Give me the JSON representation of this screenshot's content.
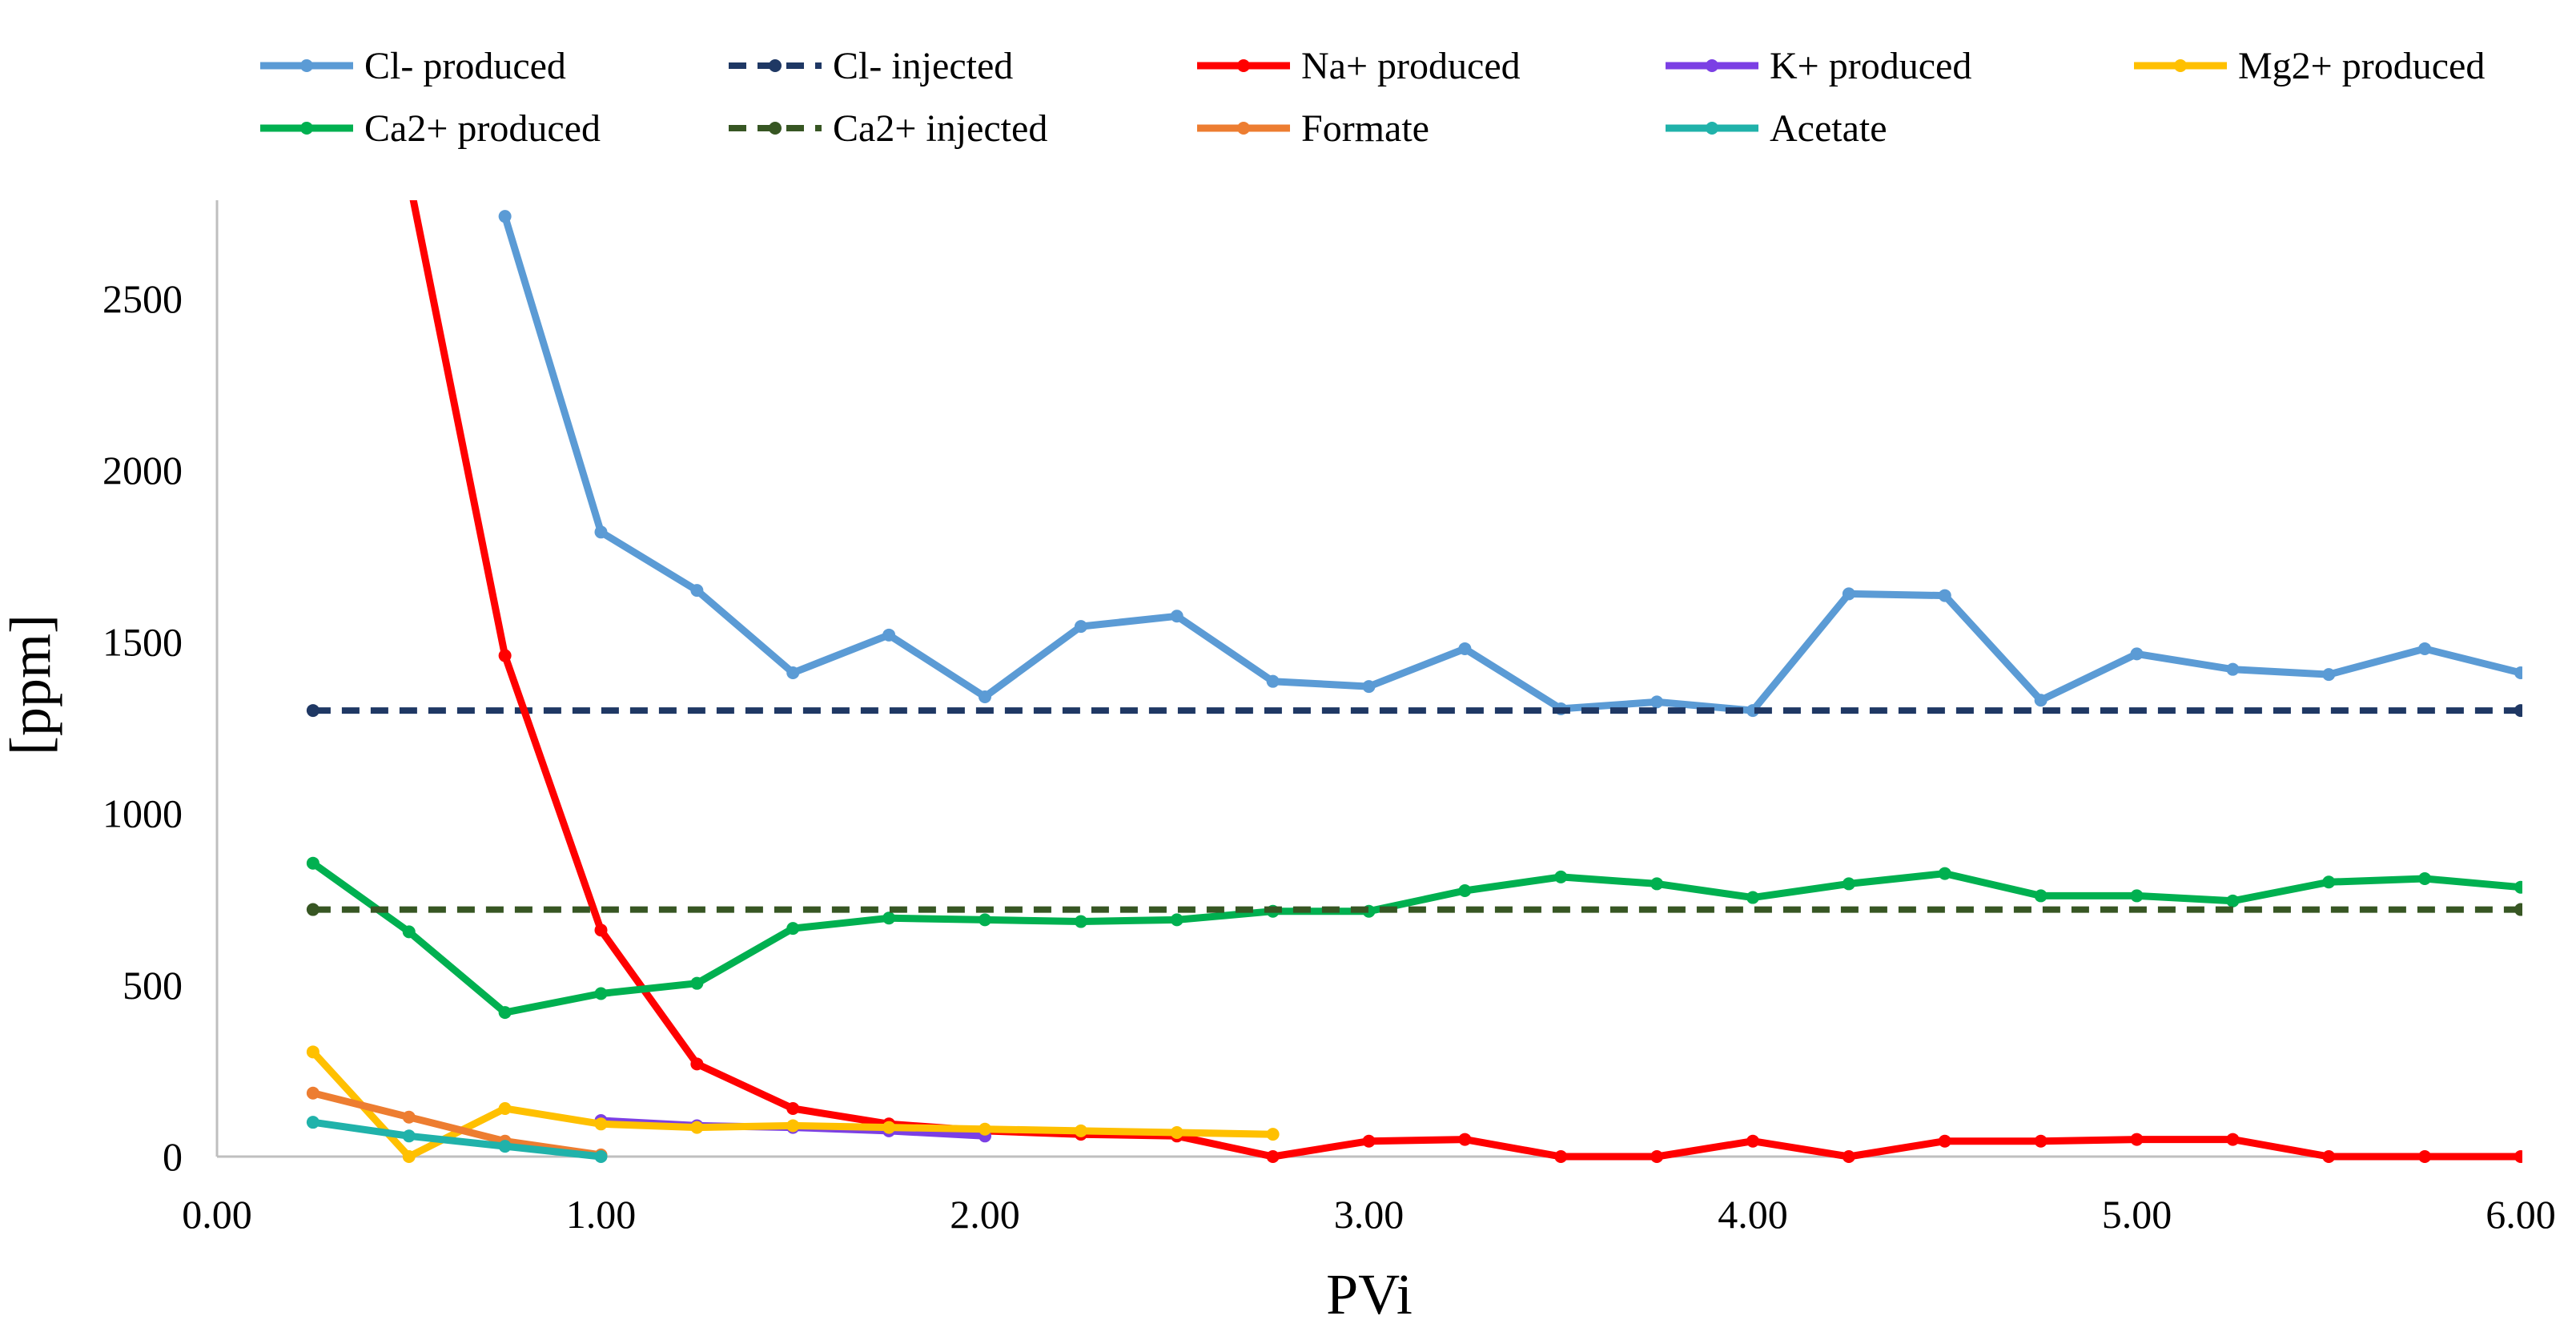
{
  "chart_data": {
    "type": "line",
    "title": "",
    "xlabel": "PVi",
    "ylabel": "[ppm]",
    "xlim": [
      0,
      6
    ],
    "ylim": [
      0,
      2800
    ],
    "x_ticks": [
      "0.00",
      "1.00",
      "2.00",
      "3.00",
      "4.00",
      "5.00",
      "6.00"
    ],
    "y_ticks": [
      "0",
      "500",
      "1000",
      "1500",
      "2000",
      "2500"
    ],
    "grid": false,
    "legend_position": "top",
    "series": [
      {
        "name": "Cl- produced",
        "color": "#5B9BD5",
        "dash": "solid",
        "x": [
          0.75,
          1.0,
          1.25,
          1.5,
          1.75,
          2.0,
          2.25,
          2.5,
          2.75,
          3.0,
          3.25,
          3.5,
          3.75,
          4.0,
          4.25,
          4.5,
          4.75,
          5.0,
          5.25,
          5.5,
          5.75,
          6.0
        ],
        "y": [
          2740,
          1820,
          1650,
          1410,
          1520,
          1340,
          1545,
          1575,
          1385,
          1370,
          1480,
          1305,
          1325,
          1300,
          1640,
          1635,
          1330,
          1465,
          1420,
          1405,
          1480,
          1410
        ]
      },
      {
        "name": "Cl- injected",
        "color": "#1F3864",
        "dash": "dashed",
        "x": [
          0.25,
          6.0
        ],
        "y": [
          1300,
          1300
        ]
      },
      {
        "name": "Na+ produced",
        "color": "#FF0000",
        "dash": "solid",
        "x": [
          0.5,
          0.75,
          1.0,
          1.25,
          1.5,
          1.75,
          2.0,
          2.25,
          2.5,
          2.75,
          3.0,
          3.25,
          3.5,
          3.75,
          4.0,
          4.25,
          4.5,
          4.75,
          5.0,
          5.25,
          5.5,
          5.75,
          6.0
        ],
        "y": [
          2850,
          1460,
          660,
          270,
          140,
          95,
          75,
          65,
          60,
          0,
          45,
          50,
          0,
          0,
          45,
          0,
          45,
          45,
          50,
          50,
          0,
          0,
          0
        ]
      },
      {
        "name": "K+ produced",
        "color": "#7B3FE4",
        "dash": "solid",
        "x": [
          1.0,
          1.25,
          1.5,
          1.75,
          2.0
        ],
        "y": [
          105,
          90,
          85,
          75,
          60
        ]
      },
      {
        "name": "Mg2+ produced",
        "color": "#FFC000",
        "dash": "solid",
        "x": [
          0.25,
          0.5,
          0.75,
          1.0,
          1.25,
          1.5,
          1.75,
          2.0,
          2.25,
          2.5,
          2.75
        ],
        "y": [
          305,
          0,
          140,
          95,
          85,
          90,
          85,
          80,
          75,
          70,
          65
        ]
      },
      {
        "name": "Ca2+ produced",
        "color": "#00B050",
        "dash": "solid",
        "x": [
          0.25,
          0.5,
          0.75,
          1.0,
          1.25,
          1.5,
          1.75,
          2.0,
          2.25,
          2.5,
          2.75,
          3.0,
          3.25,
          3.5,
          3.75,
          4.0,
          4.25,
          4.5,
          4.75,
          5.0,
          5.25,
          5.5,
          5.75,
          6.0
        ],
        "y": [
          855,
          655,
          420,
          475,
          505,
          665,
          695,
          690,
          685,
          690,
          715,
          715,
          775,
          815,
          795,
          755,
          795,
          825,
          760,
          760,
          745,
          800,
          810,
          785
        ]
      },
      {
        "name": "Ca2+ injected",
        "color": "#375623",
        "dash": "dashed",
        "x": [
          0.25,
          6.0
        ],
        "y": [
          720,
          720
        ]
      },
      {
        "name": "Formate",
        "color": "#ED7D31",
        "dash": "solid",
        "x": [
          0.25,
          0.5,
          0.75,
          1.0
        ],
        "y": [
          185,
          115,
          45,
          5
        ]
      },
      {
        "name": "Acetate",
        "color": "#20B2AA",
        "dash": "solid",
        "x": [
          0.25,
          0.5,
          0.75,
          1.0
        ],
        "y": [
          100,
          60,
          30,
          0
        ]
      }
    ]
  }
}
